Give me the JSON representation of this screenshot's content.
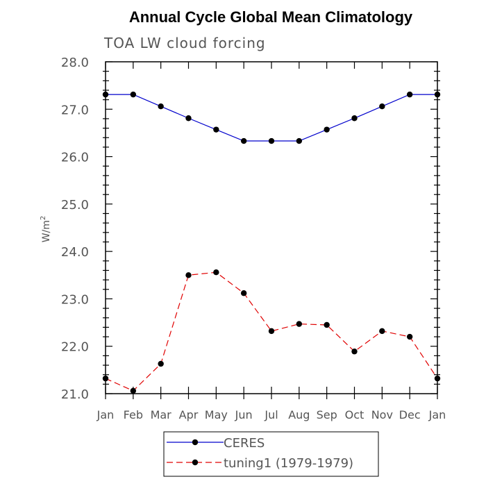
{
  "chart_data": {
    "type": "line",
    "title": "Annual Cycle Global Mean Climatology",
    "subtitle": "TOA LW cloud forcing",
    "ylabel": "W/m",
    "ylabel_superscript": "2",
    "categories": [
      "Jan",
      "Feb",
      "Mar",
      "Apr",
      "May",
      "Jun",
      "Jul",
      "Aug",
      "Sep",
      "Oct",
      "Nov",
      "Dec",
      "Jan"
    ],
    "ylim": [
      21.0,
      28.0
    ],
    "yticks": [
      21.0,
      22.0,
      23.0,
      24.0,
      25.0,
      26.0,
      27.0,
      28.0
    ],
    "ytick_labels": [
      "21.0",
      "22.0",
      "23.0",
      "24.0",
      "25.0",
      "26.0",
      "27.0",
      "28.0"
    ],
    "series": [
      {
        "name": "CERES",
        "color": "#0000cc",
        "dash": "solid",
        "values": [
          27.31,
          27.31,
          27.06,
          26.81,
          26.57,
          26.33,
          26.33,
          26.33,
          26.57,
          26.81,
          27.06,
          27.31,
          27.31
        ]
      },
      {
        "name": "tuning1 (1979-1979)",
        "color": "#e00000",
        "dash": "dashed",
        "values": [
          21.32,
          21.06,
          21.63,
          23.5,
          23.56,
          23.12,
          22.32,
          22.47,
          22.45,
          21.89,
          22.32,
          22.2,
          21.32
        ]
      }
    ],
    "legend_position": "bottom-center",
    "marker_color": "#000000"
  }
}
